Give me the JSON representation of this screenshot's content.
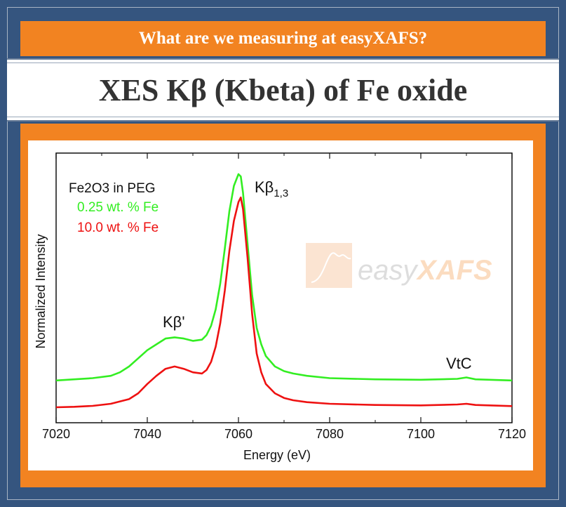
{
  "header": {
    "question": "What are we measuring at easyXAFS?",
    "title": "XES Kβ (Kbeta) of Fe oxide"
  },
  "colors": {
    "background": "#35557f",
    "accent": "#f28321",
    "series_green": "#33ee22",
    "series_red": "#ee1111"
  },
  "chart_data": {
    "type": "line",
    "xlabel": "Energy (eV)",
    "ylabel": "Normalized Intensity",
    "xlim": [
      7020,
      7120
    ],
    "ylim": [
      0,
      1.0
    ],
    "xticks": [
      7020,
      7040,
      7060,
      7080,
      7100,
      7120
    ],
    "grid": false,
    "legend": {
      "placement": "top-left",
      "title": "Fe2O3 in PEG",
      "entries": [
        "0.25 wt. % Fe",
        "10.0 wt. % Fe"
      ]
    },
    "annotations": {
      "kbeta_main": "Kβ",
      "kbeta_main_sub": "1,3",
      "kbeta_prime": "Kβ'",
      "vtc": "VtC"
    },
    "watermark": "easyXAFS",
    "series": [
      {
        "name": "0.25 wt. % Fe",
        "x": [
          7020,
          7024,
          7028,
          7032,
          7034,
          7036,
          7038,
          7040,
          7042,
          7044,
          7046,
          7048,
          7050,
          7052,
          7053,
          7054,
          7055,
          7056,
          7057,
          7058,
          7059,
          7060,
          7060.5,
          7061,
          7062,
          7063,
          7064,
          7065,
          7066,
          7068,
          7070,
          7072,
          7075,
          7080,
          7090,
          7100,
          7108,
          7110,
          7112,
          7120
        ],
        "values": [
          0.115,
          0.12,
          0.125,
          0.135,
          0.15,
          0.175,
          0.21,
          0.245,
          0.27,
          0.295,
          0.3,
          0.295,
          0.285,
          0.29,
          0.31,
          0.35,
          0.42,
          0.53,
          0.68,
          0.84,
          0.95,
          1.0,
          0.99,
          0.92,
          0.7,
          0.48,
          0.34,
          0.27,
          0.22,
          0.175,
          0.155,
          0.145,
          0.135,
          0.125,
          0.12,
          0.118,
          0.122,
          0.128,
          0.12,
          0.115
        ]
      },
      {
        "name": "10.0 wt. % Fe",
        "x": [
          7020,
          7024,
          7028,
          7032,
          7036,
          7038,
          7040,
          7042,
          7044,
          7046,
          7048,
          7050,
          7052,
          7053,
          7054,
          7055,
          7056,
          7057,
          7058,
          7059,
          7060,
          7060.5,
          7061,
          7062,
          7063,
          7064,
          7065,
          7066,
          7068,
          7070,
          7072,
          7075,
          7080,
          7090,
          7100,
          7108,
          7110,
          7112,
          7120
        ],
        "values": [
          0.0,
          0.002,
          0.006,
          0.015,
          0.035,
          0.06,
          0.1,
          0.135,
          0.165,
          0.175,
          0.165,
          0.15,
          0.145,
          0.16,
          0.195,
          0.26,
          0.36,
          0.5,
          0.67,
          0.8,
          0.88,
          0.9,
          0.85,
          0.64,
          0.4,
          0.23,
          0.15,
          0.1,
          0.06,
          0.04,
          0.03,
          0.022,
          0.015,
          0.01,
          0.008,
          0.012,
          0.015,
          0.01,
          0.005
        ]
      }
    ]
  }
}
